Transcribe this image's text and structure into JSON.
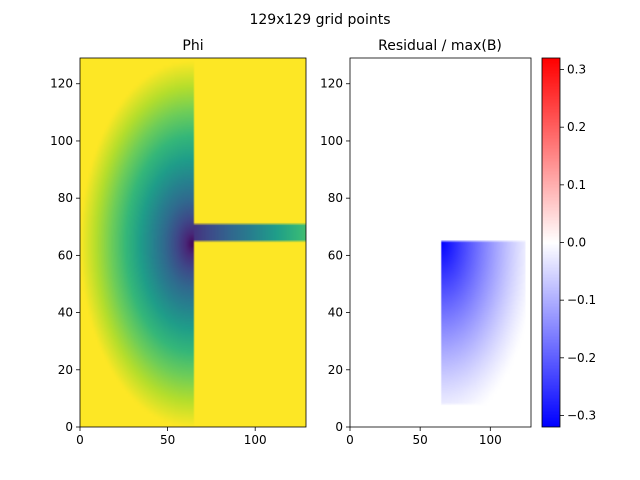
{
  "figure": {
    "suptitle": "129x129 grid points"
  },
  "chart_data": [
    {
      "type": "heatmap",
      "title": "Phi",
      "xlabel": "",
      "ylabel": "",
      "xlim": [
        0,
        129
      ],
      "ylim": [
        0,
        129
      ],
      "xticks": [
        0,
        50,
        100
      ],
      "yticks": [
        0,
        20,
        40,
        60,
        80,
        100,
        120
      ],
      "colormap": "viridis",
      "vmin": 0,
      "vmax": 1,
      "field": {
        "kind": "radial",
        "center": [
          64,
          64
        ],
        "radius": 64,
        "min_value": 0.0,
        "max_value": 1.0,
        "falloff_power": 1.3,
        "constant_region": {
          "x": [
            65,
            129
          ],
          "y": [
            8,
            129
          ],
          "value": 1.0
        },
        "slot": {
          "x": [
            65,
            129
          ],
          "y": [
            65,
            71
          ]
        }
      }
    },
    {
      "type": "heatmap",
      "title": "Residual / max(B)",
      "xlabel": "",
      "ylabel": "",
      "xlim": [
        0,
        129
      ],
      "ylim": [
        0,
        129
      ],
      "xticks": [
        0,
        50,
        100
      ],
      "yticks": [
        0,
        20,
        40,
        60,
        80,
        100,
        120
      ],
      "colormap": "bwr",
      "vmin": -0.32,
      "vmax": 0.32,
      "field": {
        "kind": "corner-gradient",
        "region": {
          "x": [
            65,
            125
          ],
          "y": [
            8,
            65
          ]
        },
        "min_value": -0.32,
        "min_at": [
          65,
          65
        ],
        "max_value": 0.0,
        "falloff_power": 1.2
      },
      "colorbar": {
        "ticks": [
          -0.3,
          -0.2,
          -0.1,
          0.0,
          0.1,
          0.2,
          0.3
        ],
        "tick_labels": [
          "−0.3",
          "−0.2",
          "−0.1",
          "0.0",
          "0.1",
          "0.2",
          "0.3"
        ]
      }
    }
  ],
  "colors": {
    "axis": "#000000",
    "background": "#ffffff"
  }
}
